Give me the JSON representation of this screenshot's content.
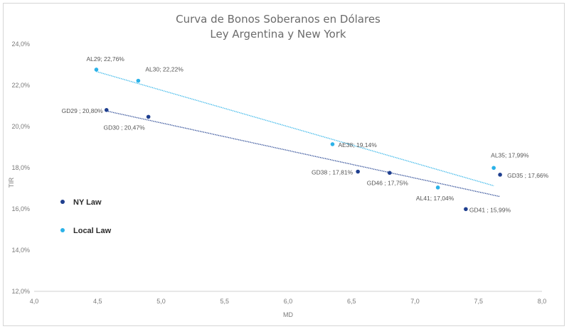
{
  "chart_data": {
    "type": "scatter",
    "title": "Curva de Bonos Soberanos en Dólares",
    "subtitle": "Ley Argentina y New York",
    "xlabel": "MD",
    "ylabel": "TIR",
    "xlim": [
      4.0,
      8.0
    ],
    "ylim": [
      12.0,
      24.0
    ],
    "x_ticks": [
      "4,0",
      "4,5",
      "5,0",
      "5,5",
      "6,0",
      "6,5",
      "7,0",
      "7,5",
      "8,0"
    ],
    "y_ticks": [
      "12,0%",
      "14,0%",
      "16,0%",
      "18,0%",
      "20,0%",
      "22,0%",
      "24,0%"
    ],
    "legend_position": "left",
    "grid": false,
    "trendlines": true,
    "series": [
      {
        "name": "NY Law",
        "color": "#1f3f8f",
        "points": [
          {
            "x": 4.57,
            "y": 20.8,
            "label": "GD29 ; 20,80%"
          },
          {
            "x": 4.9,
            "y": 20.47,
            "label": "GD30 ; 20,47%"
          },
          {
            "x": 6.55,
            "y": 17.81,
            "label": "GD38 ; 17,81%"
          },
          {
            "x": 6.8,
            "y": 17.75,
            "label": "GD46 ; 17,75%"
          },
          {
            "x": 7.4,
            "y": 15.99,
            "label": "GD41 ; 15,99%"
          },
          {
            "x": 7.67,
            "y": 17.66,
            "label": "GD35 ; 17,66%"
          }
        ]
      },
      {
        "name": "Local Law",
        "color": "#2bb2e8",
        "points": [
          {
            "x": 4.49,
            "y": 22.76,
            "label": "AL29; 22,76%"
          },
          {
            "x": 4.82,
            "y": 22.22,
            "label": "AL30; 22,22%"
          },
          {
            "x": 6.35,
            "y": 19.14,
            "label": "AE38; 19,14%"
          },
          {
            "x": 7.18,
            "y": 17.04,
            "label": "AL41; 17,04%"
          },
          {
            "x": 7.62,
            "y": 17.99,
            "label": "AL35; 17,99%"
          }
        ]
      }
    ]
  }
}
